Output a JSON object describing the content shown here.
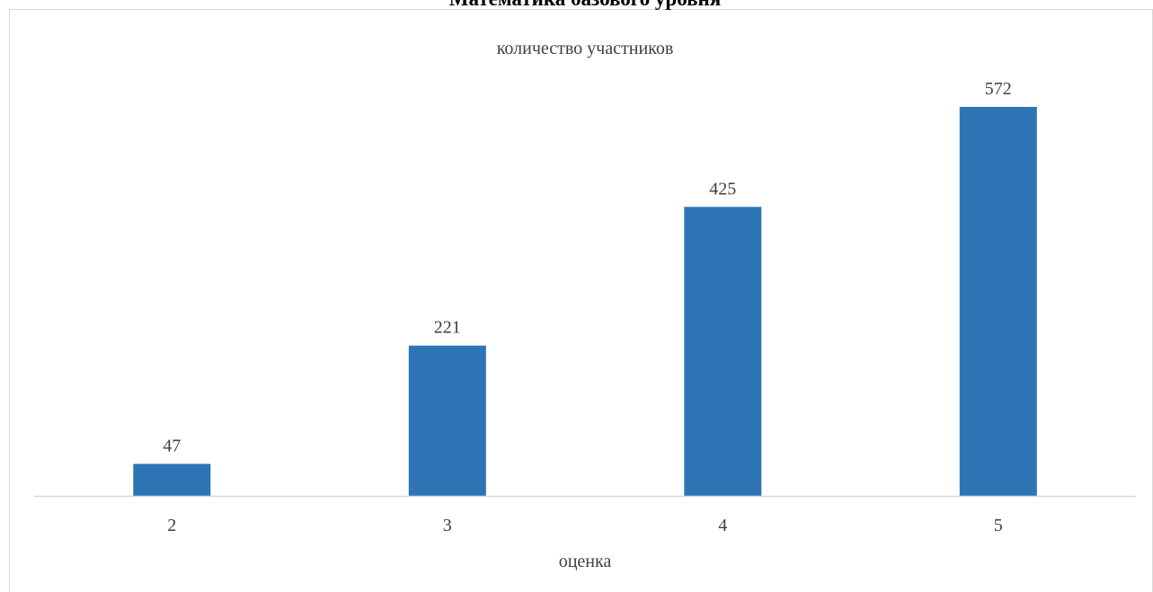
{
  "chart_data": {
    "type": "bar",
    "title": "Математика базового уровня",
    "subtitle": "количество участников",
    "xlabel": "оценка",
    "ylabel": "",
    "categories": [
      "2",
      "3",
      "4",
      "5"
    ],
    "values": [
      47,
      221,
      425,
      572
    ],
    "data_labels": [
      "47",
      "221",
      "425",
      "572"
    ],
    "ylim": [
      0,
      650
    ],
    "grid": false,
    "legend": "none",
    "colors": {
      "bar": "#2E75B6",
      "axis": "#D9D9D9",
      "text": "#404040",
      "border": "#D9D9D9"
    }
  }
}
